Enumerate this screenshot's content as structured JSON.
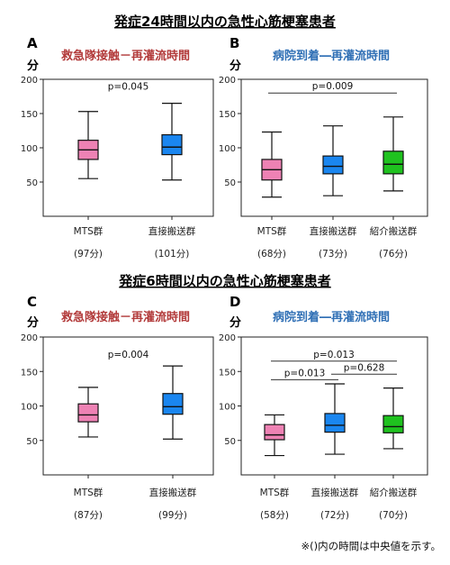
{
  "sections": [
    {
      "title": "発症24時間以内の急性心筋梗塞患者"
    },
    {
      "title": "発症6時間以内の急性心筋梗塞患者"
    }
  ],
  "note": "※()内の時間は中央値を示す。",
  "colors": {
    "pink": "#ee82b4",
    "blue": "#1a86f0",
    "green": "#1fc21f",
    "title_red": "#b23a3a",
    "title_blue": "#2f6fb5"
  },
  "chart_data": [
    {
      "id": "A",
      "type": "box",
      "panel_label": "A",
      "unit": "分",
      "title": "救急隊接触－再灌流時間",
      "title_color": "red",
      "ylim": [
        0,
        200
      ],
      "yticks": [
        50,
        100,
        150,
        200
      ],
      "categories": [
        "MTS群",
        "直接搬送群"
      ],
      "medians_label": [
        "(97分)",
        "(101分)"
      ],
      "boxes": [
        {
          "min": 55,
          "q1": 83,
          "median": 97,
          "q3": 111,
          "max": 153,
          "color": "pink"
        },
        {
          "min": 53,
          "q1": 90,
          "median": 101,
          "q3": 119,
          "max": 165,
          "color": "blue"
        }
      ],
      "comparisons": [
        {
          "label": "p=0.045",
          "from": null,
          "to": null,
          "y": 193
        }
      ]
    },
    {
      "id": "B",
      "type": "box",
      "panel_label": "B",
      "unit": "分",
      "title": "病院到着―再灌流時間",
      "title_color": "blue",
      "ylim": [
        0,
        200
      ],
      "yticks": [
        50,
        100,
        150,
        200
      ],
      "categories": [
        "MTS群",
        "直接搬送群",
        "紹介搬送群"
      ],
      "medians_label": [
        "(68分)",
        "(73分)",
        "(76分)"
      ],
      "boxes": [
        {
          "min": 28,
          "q1": 53,
          "median": 68,
          "q3": 83,
          "max": 123,
          "color": "pink"
        },
        {
          "min": 30,
          "q1": 62,
          "median": 73,
          "q3": 88,
          "max": 132,
          "color": "blue"
        },
        {
          "min": 37,
          "q1": 62,
          "median": 76,
          "q3": 95,
          "max": 145,
          "color": "green"
        }
      ],
      "comparisons": [
        {
          "label": "p=0.009",
          "from": 0,
          "to": 2,
          "y": 180
        }
      ]
    },
    {
      "id": "C",
      "type": "box",
      "panel_label": "C",
      "unit": "分",
      "title": "救急隊接触－再灌流時間",
      "title_color": "red",
      "ylim": [
        0,
        200
      ],
      "yticks": [
        50,
        100,
        150,
        200
      ],
      "categories": [
        "MTS群",
        "直接搬送群"
      ],
      "medians_label": [
        "(87分)",
        "(99分)"
      ],
      "boxes": [
        {
          "min": 55,
          "q1": 77,
          "median": 87,
          "q3": 103,
          "max": 127,
          "color": "pink"
        },
        {
          "min": 52,
          "q1": 88,
          "median": 99,
          "q3": 118,
          "max": 158,
          "color": "blue"
        }
      ],
      "comparisons": [
        {
          "label": "p=0.004",
          "from": null,
          "to": null,
          "y": 178
        }
      ]
    },
    {
      "id": "D",
      "type": "box",
      "panel_label": "D",
      "unit": "分",
      "title": "病院到着―再灌流時間",
      "title_color": "blue",
      "ylim": [
        0,
        200
      ],
      "yticks": [
        50,
        100,
        150,
        200
      ],
      "categories": [
        "MTS群",
        "直接搬送群",
        "紹介搬送群"
      ],
      "medians_label": [
        "(58分)",
        "(72分)",
        "(70分)"
      ],
      "boxes": [
        {
          "min": 28,
          "q1": 51,
          "median": 58,
          "q3": 73,
          "max": 87,
          "color": "pink"
        },
        {
          "min": 30,
          "q1": 62,
          "median": 72,
          "q3": 89,
          "max": 132,
          "color": "blue"
        },
        {
          "min": 38,
          "q1": 61,
          "median": 70,
          "q3": 86,
          "max": 126,
          "color": "green"
        }
      ],
      "comparisons": [
        {
          "label": "p=0.013",
          "from": 0,
          "to": 2,
          "y": 165
        },
        {
          "label": "p=0.013",
          "from": 0,
          "to": 1,
          "y": 138
        },
        {
          "label": "p=0.628",
          "from": 1,
          "to": 2,
          "y": 146
        }
      ]
    }
  ]
}
